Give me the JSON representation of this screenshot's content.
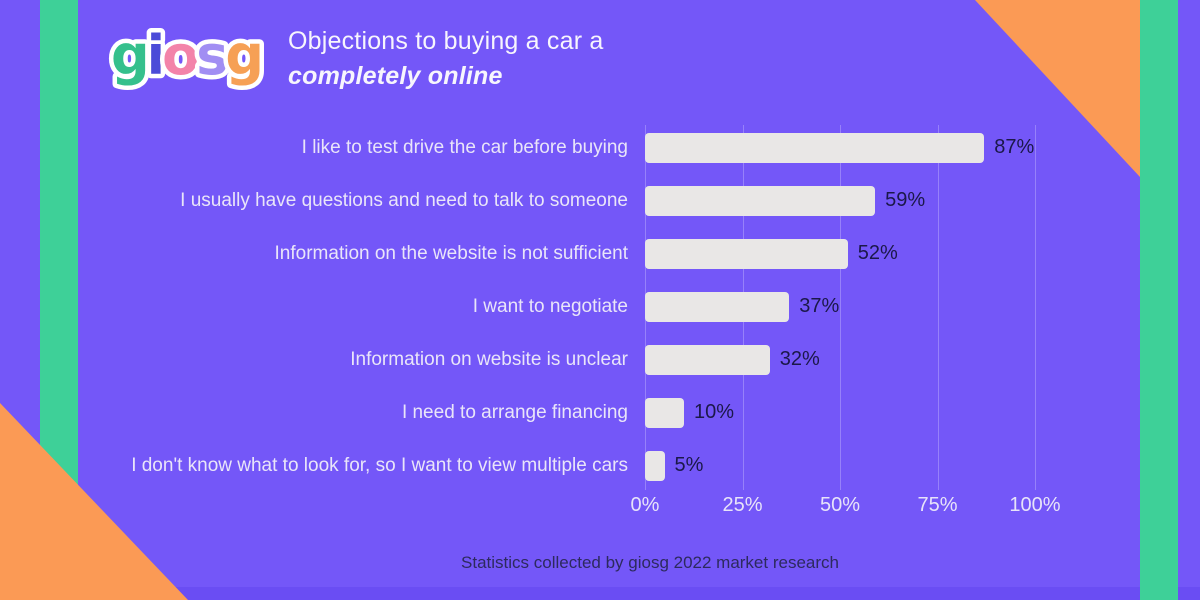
{
  "header": {
    "title_line1": "Objections to buying a car a",
    "title_line2": "completely online",
    "logo": {
      "name": "giosg",
      "letters": [
        {
          "char": "g",
          "color": "#35c08c"
        },
        {
          "char": "i",
          "color": "#4b4bd8"
        },
        {
          "char": "o",
          "color": "#f383a9"
        },
        {
          "char": "s",
          "color": "#a18ef3"
        },
        {
          "char": "g",
          "color": "#f6a055"
        }
      ]
    }
  },
  "chart_data": {
    "type": "bar",
    "orientation": "horizontal",
    "title": "Objections to buying a car a completely online",
    "categories": [
      "I like to test drive the car before buying",
      "I usually have questions and need to talk to someone",
      "Information on the website is not sufficient",
      "I want to negotiate",
      "Information on website is unclear",
      "I need to arrange financing",
      "I don't know what to look for, so I want to view multiple cars"
    ],
    "values": [
      87,
      59,
      52,
      37,
      32,
      10,
      5
    ],
    "value_suffix": "%",
    "xticks": [
      "0%",
      "25%",
      "50%",
      "75%",
      "100%"
    ],
    "xlim": [
      0,
      100
    ],
    "grid": true,
    "legend": false,
    "bar_color": "#e9e7e6",
    "value_label_color": "#1b1849",
    "category_label_color": "#e9e5f9"
  },
  "footer": {
    "caption": "Statistics collected by giosg 2022 market research"
  },
  "colors": {
    "background_purple": "#7457f8",
    "accent_green": "#3ed098",
    "accent_orange": "#fb9a55",
    "bottom_strip_purple": "#6a4df3",
    "gridline": "rgba(255,255,255,0.25)"
  }
}
